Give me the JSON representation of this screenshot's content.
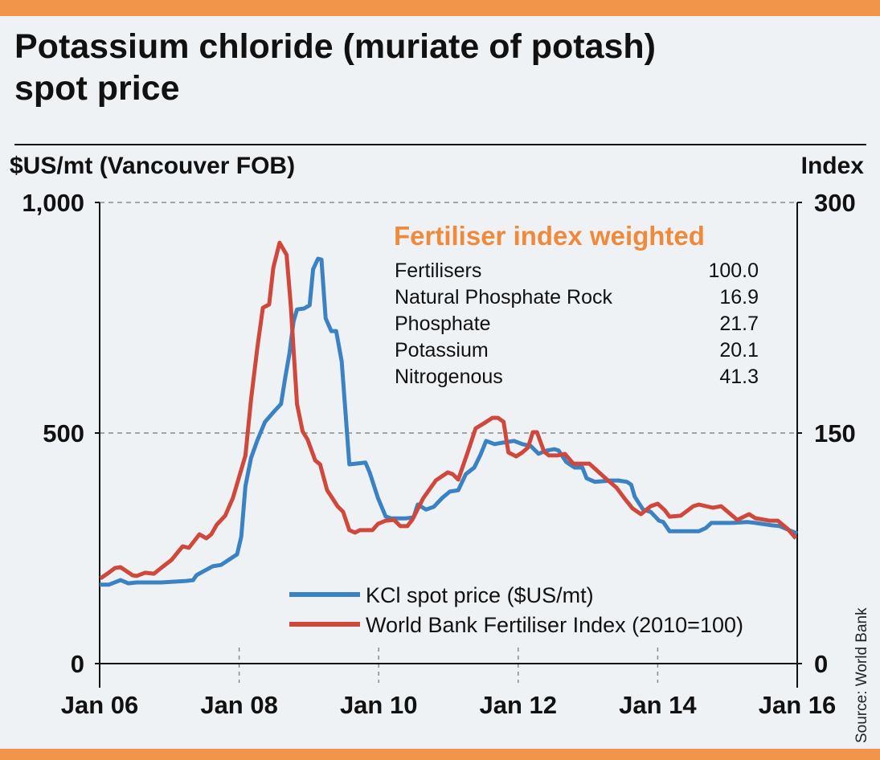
{
  "colors": {
    "kcl": "#3a82c4",
    "index": "#d0473c",
    "accent": "#f08a3a",
    "bar": "#f0954a"
  },
  "title_line1": "Potassium chloride (muriate of potash)",
  "title_line2": "spot price",
  "source": "Source: World Bank",
  "chart_data": {
    "type": "line",
    "title": "Potassium chloride (muriate of potash) spot price",
    "ylabel": "$US/mt (Vancouver FOB)",
    "ylabel_right": "Index",
    "ylim": [
      0,
      1000
    ],
    "ylim_right": [
      0,
      300
    ],
    "xlim": [
      2006,
      2016
    ],
    "x_ticks": [
      {
        "x": 2006,
        "label": "Jan 06"
      },
      {
        "x": 2008,
        "label": "Jan 08"
      },
      {
        "x": 2010,
        "label": "Jan 10"
      },
      {
        "x": 2012,
        "label": "Jan 12"
      },
      {
        "x": 2014,
        "label": "Jan 14"
      },
      {
        "x": 2016,
        "label": "Jan 16"
      }
    ],
    "y_ticks_left": [
      {
        "v": 0,
        "label": "0"
      },
      {
        "v": 500,
        "label": "500"
      },
      {
        "v": 1000,
        "label": "1,000"
      }
    ],
    "y_ticks_right": [
      {
        "v": 0,
        "label": "0"
      },
      {
        "v": 150,
        "label": "150"
      },
      {
        "v": 300,
        "label": "300"
      }
    ],
    "grid": "horizontal dashed",
    "legend_position": "bottom-center",
    "series": [
      {
        "name": "KCl spot price ($US/mt)",
        "axis": "left",
        "color": "#3a82c4",
        "points": [
          [
            2006.0,
            171
          ],
          [
            2006.13,
            171
          ],
          [
            2006.3,
            181
          ],
          [
            2006.41,
            174
          ],
          [
            2006.53,
            176
          ],
          [
            2006.88,
            176
          ],
          [
            2007.22,
            179
          ],
          [
            2007.34,
            181
          ],
          [
            2007.39,
            192
          ],
          [
            2007.51,
            202
          ],
          [
            2007.62,
            211
          ],
          [
            2007.74,
            214
          ],
          [
            2007.85,
            225
          ],
          [
            2007.97,
            237
          ],
          [
            2008.03,
            275
          ],
          [
            2008.09,
            385
          ],
          [
            2008.17,
            446
          ],
          [
            2008.26,
            484
          ],
          [
            2008.37,
            524
          ],
          [
            2008.49,
            545
          ],
          [
            2008.6,
            563
          ],
          [
            2008.66,
            620
          ],
          [
            2008.72,
            672
          ],
          [
            2008.78,
            742
          ],
          [
            2008.83,
            768
          ],
          [
            2008.93,
            770
          ],
          [
            2009.01,
            777
          ],
          [
            2009.06,
            855
          ],
          [
            2009.13,
            878
          ],
          [
            2009.18,
            876
          ],
          [
            2009.24,
            749
          ],
          [
            2009.32,
            721
          ],
          [
            2009.39,
            721
          ],
          [
            2009.47,
            655
          ],
          [
            2009.53,
            533
          ],
          [
            2009.58,
            432
          ],
          [
            2009.7,
            434
          ],
          [
            2009.81,
            436
          ],
          [
            2009.87,
            415
          ],
          [
            2009.99,
            359
          ],
          [
            2010.1,
            319
          ],
          [
            2010.18,
            315
          ],
          [
            2010.27,
            315
          ],
          [
            2010.39,
            315
          ],
          [
            2010.5,
            317
          ],
          [
            2010.56,
            345
          ],
          [
            2010.68,
            334
          ],
          [
            2010.79,
            340
          ],
          [
            2010.91,
            359
          ],
          [
            2011.02,
            373
          ],
          [
            2011.14,
            376
          ],
          [
            2011.25,
            411
          ],
          [
            2011.37,
            425
          ],
          [
            2011.46,
            453
          ],
          [
            2011.54,
            483
          ],
          [
            2011.66,
            476
          ],
          [
            2011.77,
            479
          ],
          [
            2011.94,
            483
          ],
          [
            2012.06,
            476
          ],
          [
            2012.18,
            472
          ],
          [
            2012.29,
            455
          ],
          [
            2012.41,
            462
          ],
          [
            2012.52,
            465
          ],
          [
            2012.58,
            462
          ],
          [
            2012.69,
            437
          ],
          [
            2012.81,
            425
          ],
          [
            2012.92,
            425
          ],
          [
            2012.98,
            402
          ],
          [
            2013.1,
            394
          ],
          [
            2013.33,
            397
          ],
          [
            2013.44,
            397
          ],
          [
            2013.56,
            394
          ],
          [
            2013.62,
            388
          ],
          [
            2013.67,
            362
          ],
          [
            2013.79,
            334
          ],
          [
            2013.9,
            329
          ],
          [
            2014.02,
            310
          ],
          [
            2014.08,
            307
          ],
          [
            2014.17,
            287
          ],
          [
            2014.59,
            287
          ],
          [
            2014.69,
            294
          ],
          [
            2014.77,
            305
          ],
          [
            2015.06,
            305
          ],
          [
            2015.29,
            307
          ],
          [
            2015.4,
            305
          ],
          [
            2015.63,
            300
          ],
          [
            2015.75,
            298
          ],
          [
            2015.86,
            291
          ],
          [
            2016.0,
            282
          ]
        ]
      },
      {
        "name": "World Bank Fertiliser Index (2010=100)",
        "axis": "right",
        "color": "#d0473c",
        "points": [
          [
            2006.01,
            55.4
          ],
          [
            2006.13,
            59.1
          ],
          [
            2006.22,
            62.2
          ],
          [
            2006.3,
            62.7
          ],
          [
            2006.47,
            57.5
          ],
          [
            2006.53,
            57.0
          ],
          [
            2006.65,
            59.1
          ],
          [
            2006.78,
            58.5
          ],
          [
            2006.88,
            62.2
          ],
          [
            2007.03,
            67.4
          ],
          [
            2007.19,
            76.3
          ],
          [
            2007.28,
            75.3
          ],
          [
            2007.43,
            84.1
          ],
          [
            2007.53,
            81.5
          ],
          [
            2007.6,
            84.1
          ],
          [
            2007.68,
            90.4
          ],
          [
            2007.8,
            96.2
          ],
          [
            2007.91,
            107.7
          ],
          [
            2008.09,
            135.4
          ],
          [
            2008.17,
            171.9
          ],
          [
            2008.26,
            205.4
          ],
          [
            2008.34,
            231.5
          ],
          [
            2008.43,
            233.6
          ],
          [
            2008.49,
            257.6
          ],
          [
            2008.58,
            273.8
          ],
          [
            2008.68,
            266.0
          ],
          [
            2008.74,
            233.1
          ],
          [
            2008.83,
            168.8
          ],
          [
            2008.91,
            151.0
          ],
          [
            2008.98,
            145.8
          ],
          [
            2009.09,
            132.2
          ],
          [
            2009.16,
            129.6
          ],
          [
            2009.26,
            112.9
          ],
          [
            2009.41,
            102.4
          ],
          [
            2009.49,
            98.8
          ],
          [
            2009.58,
            86.8
          ],
          [
            2009.66,
            85.2
          ],
          [
            2009.73,
            86.8
          ],
          [
            2009.91,
            86.8
          ],
          [
            2009.99,
            90.9
          ],
          [
            2010.1,
            93.0
          ],
          [
            2010.22,
            93.5
          ],
          [
            2010.31,
            89.4
          ],
          [
            2010.41,
            89.4
          ],
          [
            2010.48,
            93.5
          ],
          [
            2010.64,
            107.7
          ],
          [
            2010.82,
            119.2
          ],
          [
            2010.99,
            124.4
          ],
          [
            2011.06,
            123.3
          ],
          [
            2011.14,
            119.7
          ],
          [
            2011.28,
            138.0
          ],
          [
            2011.39,
            153.1
          ],
          [
            2011.51,
            156.3
          ],
          [
            2011.63,
            159.9
          ],
          [
            2011.71,
            159.9
          ],
          [
            2011.79,
            157.3
          ],
          [
            2011.86,
            137.4
          ],
          [
            2011.97,
            134.8
          ],
          [
            2012.06,
            137.4
          ],
          [
            2012.14,
            140.6
          ],
          [
            2012.21,
            150.5
          ],
          [
            2012.27,
            150.5
          ],
          [
            2012.37,
            138.0
          ],
          [
            2012.44,
            135.4
          ],
          [
            2012.56,
            135.4
          ],
          [
            2012.67,
            136.4
          ],
          [
            2012.79,
            130.1
          ],
          [
            2012.87,
            130.1
          ],
          [
            2013.02,
            130.1
          ],
          [
            2013.25,
            120.7
          ],
          [
            2013.41,
            114.4
          ],
          [
            2013.52,
            107.7
          ],
          [
            2013.64,
            100.9
          ],
          [
            2013.76,
            97.2
          ],
          [
            2013.9,
            102.4
          ],
          [
            2014.0,
            104.0
          ],
          [
            2014.1,
            99.8
          ],
          [
            2014.17,
            95.6
          ],
          [
            2014.33,
            96.2
          ],
          [
            2014.51,
            102.4
          ],
          [
            2014.59,
            103.5
          ],
          [
            2014.79,
            101.4
          ],
          [
            2014.91,
            102.4
          ],
          [
            2015.14,
            93.5
          ],
          [
            2015.31,
            97.2
          ],
          [
            2015.4,
            94.6
          ],
          [
            2015.6,
            93.0
          ],
          [
            2015.72,
            93.0
          ],
          [
            2015.86,
            87.8
          ],
          [
            2015.98,
            81.5
          ]
        ]
      }
    ],
    "annotation": {
      "title": "Fertiliser index weighted",
      "rows": [
        {
          "label": "Fertilisers",
          "value": "100.0"
        },
        {
          "label": "Natural Phosphate Rock",
          "value": "16.9"
        },
        {
          "label": "Phosphate",
          "value": "21.7"
        },
        {
          "label": "Potassium",
          "value": "20.1"
        },
        {
          "label": "Nitrogenous",
          "value": "41.3"
        }
      ]
    }
  }
}
